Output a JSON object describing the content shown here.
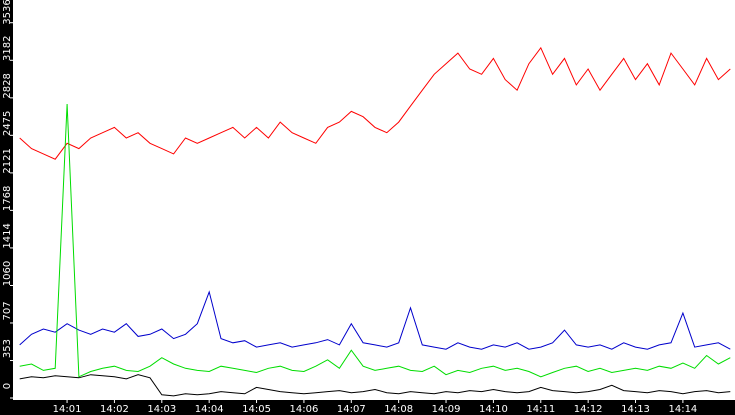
{
  "chart_data": {
    "type": "line",
    "x": [
      840,
      840.25,
      840.5,
      840.75,
      841,
      841.25,
      841.5,
      841.75,
      842,
      842.25,
      842.5,
      842.75,
      843,
      843.25,
      843.5,
      843.75,
      844,
      844.25,
      844.5,
      844.75,
      845,
      845.25,
      845.5,
      845.75,
      846,
      846.25,
      846.5,
      846.75,
      847,
      847.25,
      847.5,
      847.75,
      848,
      848.25,
      848.5,
      848.75,
      849,
      849.25,
      849.5,
      849.75,
      850,
      850.25,
      850.5,
      850.75,
      851,
      851.25,
      851.5,
      851.75,
      852,
      852.25,
      852.5,
      852.75,
      853,
      853.25,
      853.5,
      853.75,
      854,
      854.25,
      854.5,
      854.75,
      855
    ],
    "series": [
      {
        "color": "#ff0000",
        "values": [
          2450,
          2350,
          2300,
          2250,
          2400,
          2350,
          2450,
          2500,
          2550,
          2450,
          2500,
          2400,
          2350,
          2300,
          2450,
          2400,
          2450,
          2500,
          2550,
          2450,
          2550,
          2450,
          2600,
          2500,
          2450,
          2400,
          2550,
          2600,
          2700,
          2650,
          2550,
          2500,
          2600,
          2750,
          2900,
          3050,
          3150,
          3250,
          3100,
          3050,
          3200,
          3000,
          2900,
          3150,
          3300,
          3050,
          3200,
          2950,
          3100,
          2900,
          3050,
          3200,
          3000,
          3150,
          2950,
          3250,
          3100,
          2950,
          3200,
          3000,
          3100
        ]
      },
      {
        "color": "#0000cc",
        "values": [
          500,
          600,
          650,
          620,
          700,
          640,
          600,
          650,
          620,
          700,
          580,
          600,
          650,
          560,
          600,
          700,
          1000,
          560,
          520,
          540,
          480,
          500,
          520,
          480,
          500,
          520,
          550,
          500,
          700,
          520,
          500,
          480,
          520,
          850,
          500,
          480,
          460,
          520,
          480,
          460,
          500,
          480,
          520,
          460,
          480,
          520,
          640,
          500,
          480,
          500,
          460,
          520,
          480,
          460,
          500,
          520,
          800,
          480,
          500,
          520,
          460
        ]
      },
      {
        "color": "#00dd00",
        "values": [
          300,
          320,
          260,
          280,
          2770,
          200,
          250,
          280,
          300,
          260,
          250,
          300,
          380,
          320,
          280,
          260,
          250,
          300,
          280,
          260,
          240,
          280,
          300,
          260,
          250,
          300,
          360,
          280,
          450,
          300,
          260,
          280,
          300,
          260,
          250,
          300,
          220,
          260,
          240,
          280,
          300,
          260,
          280,
          250,
          200,
          240,
          280,
          300,
          250,
          280,
          240,
          260,
          280,
          260,
          300,
          280,
          330,
          280,
          400,
          320,
          380
        ]
      },
      {
        "color": "#000000",
        "values": [
          180,
          200,
          190,
          210,
          200,
          190,
          220,
          210,
          200,
          180,
          220,
          190,
          30,
          20,
          40,
          30,
          40,
          60,
          50,
          40,
          100,
          80,
          60,
          50,
          40,
          50,
          60,
          70,
          50,
          60,
          80,
          50,
          40,
          60,
          50,
          40,
          60,
          50,
          70,
          60,
          80,
          60,
          50,
          60,
          100,
          70,
          60,
          50,
          60,
          80,
          120,
          70,
          60,
          50,
          70,
          60,
          40,
          60,
          70,
          50,
          60
        ]
      }
    ],
    "xlim": [
      839.88,
      855.1
    ],
    "xticks": [
      {
        "value": 841,
        "label": "14:01"
      },
      {
        "value": 842,
        "label": "14:02"
      },
      {
        "value": 843,
        "label": "14:03"
      },
      {
        "value": 844,
        "label": "14:04"
      },
      {
        "value": 845,
        "label": "14:05"
      },
      {
        "value": 846,
        "label": "14:06"
      },
      {
        "value": 847,
        "label": "14:07"
      },
      {
        "value": 848,
        "label": "14:08"
      },
      {
        "value": 849,
        "label": "14:09"
      },
      {
        "value": 850,
        "label": "14:10"
      },
      {
        "value": 851,
        "label": "14:11"
      },
      {
        "value": 852,
        "label": "14:12"
      },
      {
        "value": 853,
        "label": "14:13"
      },
      {
        "value": 854,
        "label": "14:14"
      }
    ],
    "ylim": [
      0,
      3750
    ],
    "yticks": [
      0,
      353,
      707,
      1060,
      1414,
      1768,
      2121,
      2475,
      2828,
      3182,
      3536
    ]
  }
}
